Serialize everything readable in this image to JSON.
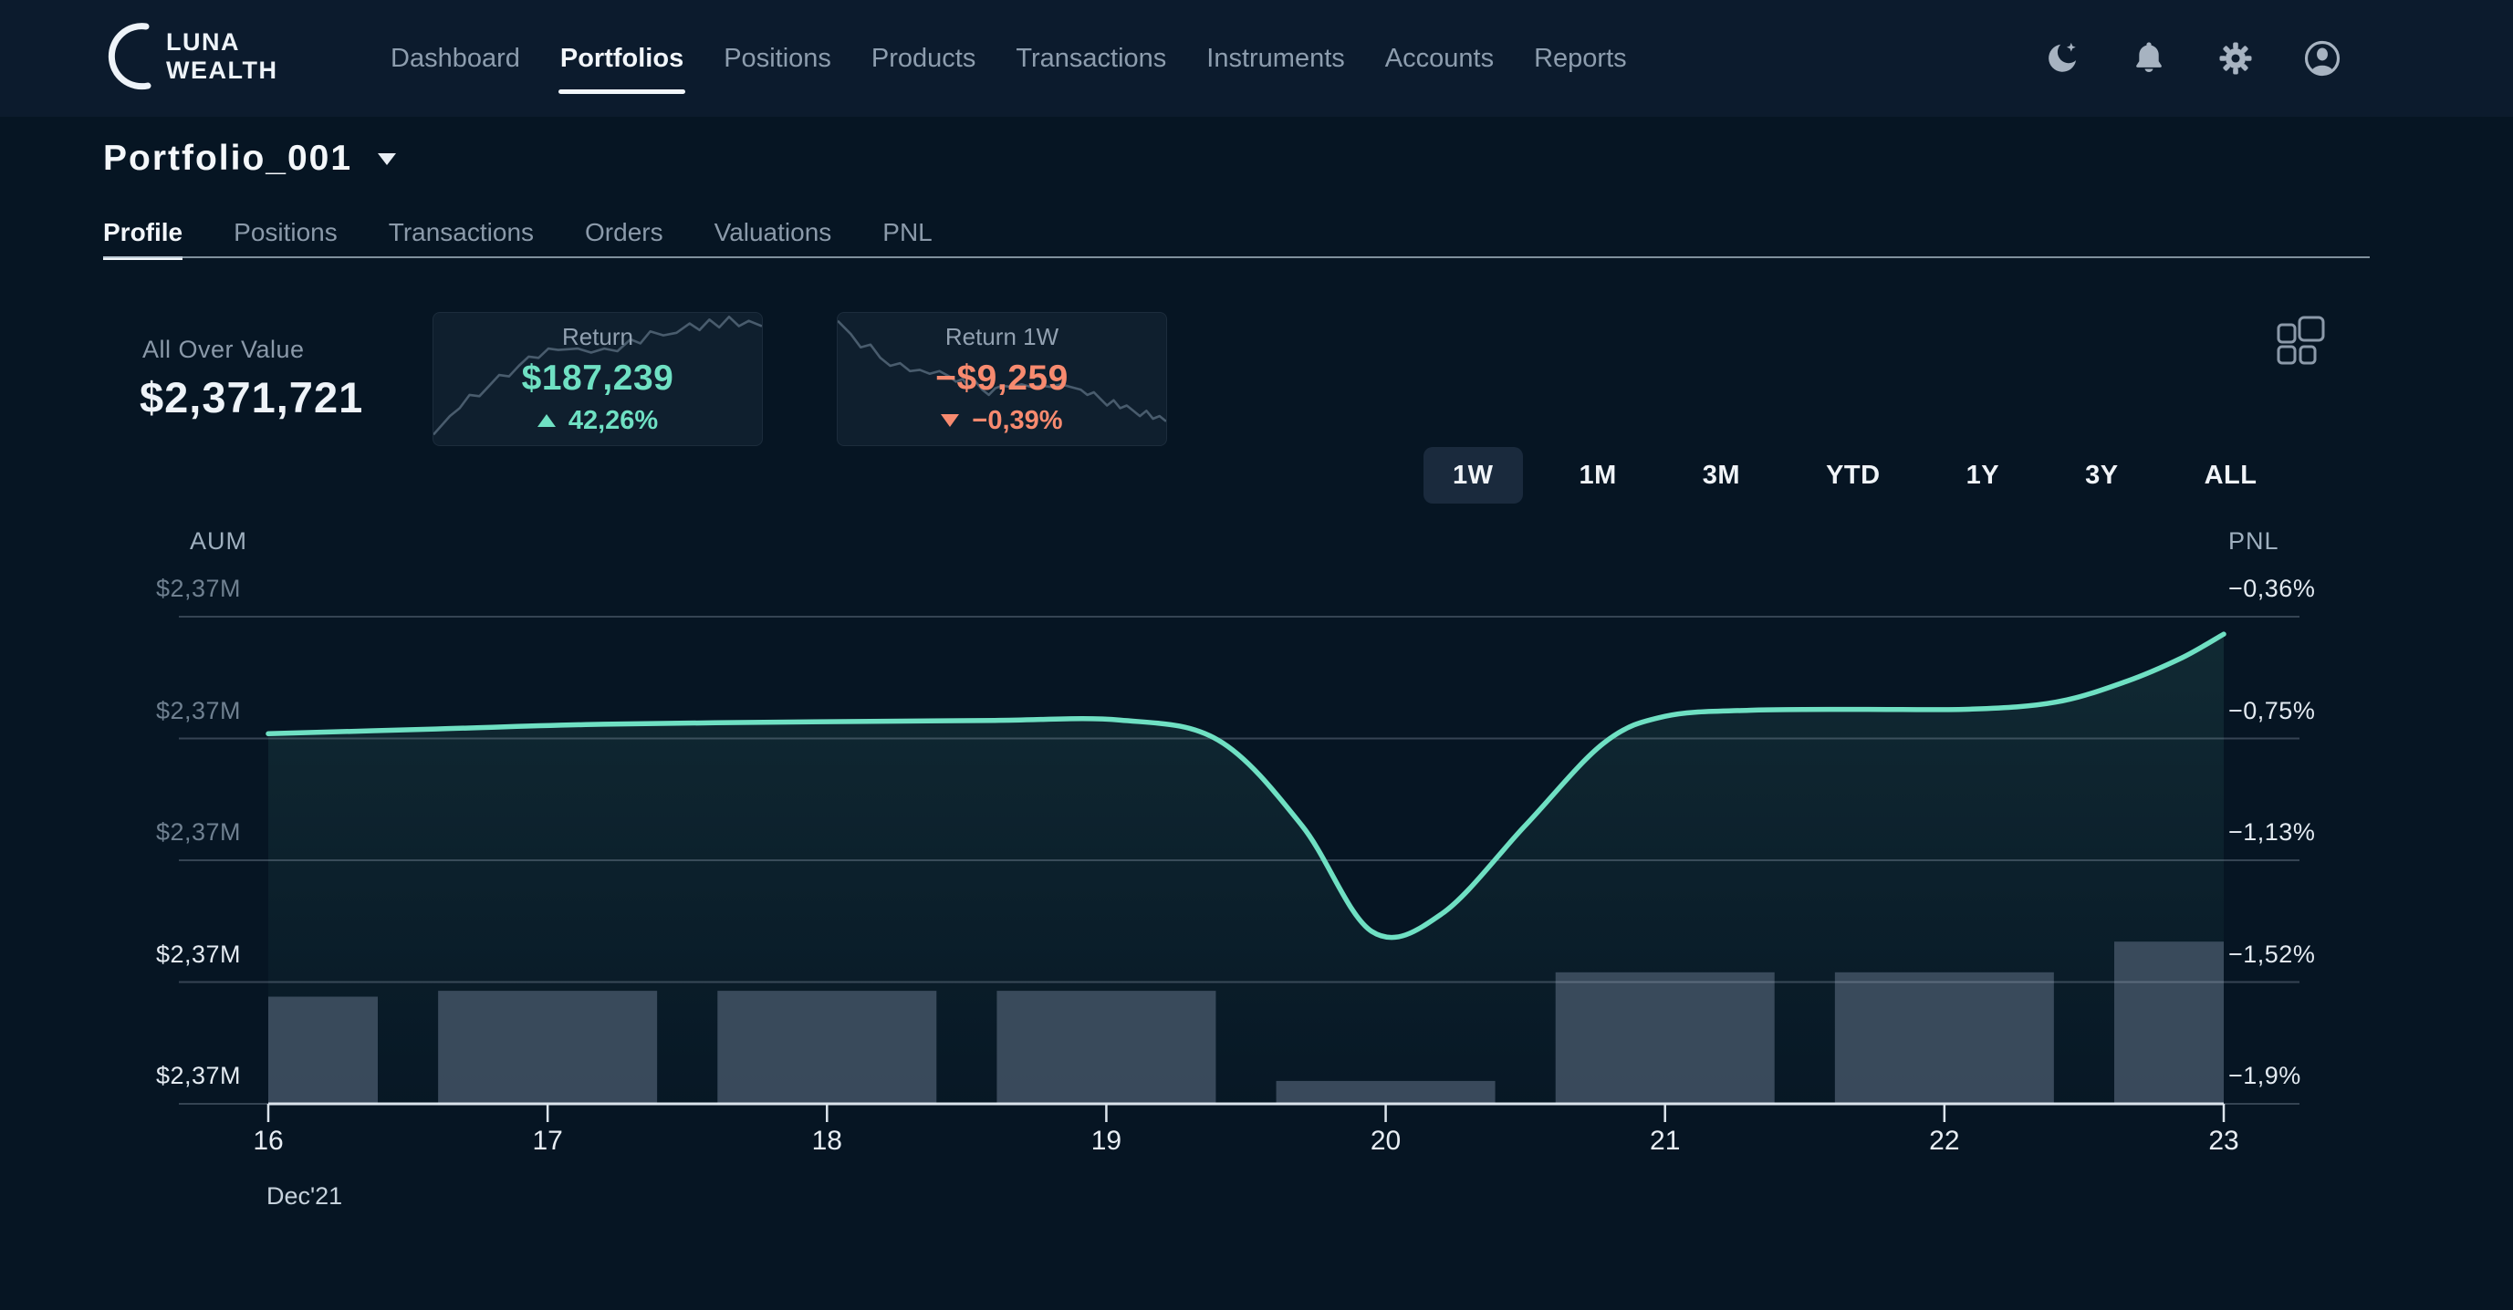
{
  "brand": {
    "line1": "LUNA",
    "line2": "WEALTH"
  },
  "nav": {
    "items": [
      {
        "label": "Dashboard",
        "active": false
      },
      {
        "label": "Portfolios",
        "active": true
      },
      {
        "label": "Positions",
        "active": false
      },
      {
        "label": "Products",
        "active": false
      },
      {
        "label": "Transactions",
        "active": false
      },
      {
        "label": "Instruments",
        "active": false
      },
      {
        "label": "Accounts",
        "active": false
      },
      {
        "label": "Reports",
        "active": false
      }
    ],
    "icons": [
      "moon-icon",
      "bell-icon",
      "gear-icon",
      "avatar-icon"
    ]
  },
  "portfolio": {
    "title": "Portfolio_001"
  },
  "tabs": [
    {
      "label": "Profile",
      "active": true
    },
    {
      "label": "Positions",
      "active": false
    },
    {
      "label": "Transactions",
      "active": false
    },
    {
      "label": "Orders",
      "active": false
    },
    {
      "label": "Valuations",
      "active": false
    },
    {
      "label": "PNL",
      "active": false
    }
  ],
  "stats": {
    "all_over_value": {
      "label": "All Over Value",
      "value": "$2,371,721"
    },
    "return": {
      "label": "Return",
      "value": "$187,239",
      "change": "42,26%",
      "direction": "up",
      "sparkline": [
        [
          0,
          92
        ],
        [
          5,
          78
        ],
        [
          8,
          72
        ],
        [
          11,
          62
        ],
        [
          14,
          63
        ],
        [
          17,
          55
        ],
        [
          20,
          47
        ],
        [
          23,
          48
        ],
        [
          26,
          40
        ],
        [
          29,
          33
        ],
        [
          32,
          34
        ],
        [
          35,
          27
        ],
        [
          38,
          28
        ],
        [
          44,
          27
        ],
        [
          48,
          30
        ],
        [
          52,
          27
        ],
        [
          56,
          29
        ],
        [
          60,
          20
        ],
        [
          63,
          23
        ],
        [
          66,
          14
        ],
        [
          70,
          17
        ],
        [
          74,
          15
        ],
        [
          78,
          8
        ],
        [
          81,
          13
        ],
        [
          84,
          5
        ],
        [
          87,
          11
        ],
        [
          90,
          3
        ],
        [
          93,
          10
        ],
        [
          96,
          6
        ],
        [
          100,
          10
        ]
      ]
    },
    "return_1w": {
      "label": "Return 1W",
      "value": "−$9,259",
      "change": "−0,39%",
      "direction": "down",
      "sparkline": [
        [
          0,
          6
        ],
        [
          4,
          16
        ],
        [
          7,
          26
        ],
        [
          10,
          24
        ],
        [
          13,
          34
        ],
        [
          16,
          40
        ],
        [
          19,
          38
        ],
        [
          22,
          44
        ],
        [
          25,
          43
        ],
        [
          28,
          46
        ],
        [
          31,
          44
        ],
        [
          34,
          48
        ],
        [
          36,
          52
        ],
        [
          38,
          50
        ],
        [
          40,
          56
        ],
        [
          42,
          52
        ],
        [
          44,
          58
        ],
        [
          46,
          62
        ],
        [
          48,
          57
        ],
        [
          50,
          55
        ],
        [
          53,
          56
        ],
        [
          56,
          54
        ],
        [
          59,
          56
        ],
        [
          62,
          55
        ],
        [
          65,
          56
        ],
        [
          68,
          54
        ],
        [
          71,
          56
        ],
        [
          74,
          58
        ],
        [
          76,
          62
        ],
        [
          78,
          60
        ],
        [
          80,
          65
        ],
        [
          82,
          70
        ],
        [
          84,
          66
        ],
        [
          86,
          72
        ],
        [
          88,
          70
        ],
        [
          90,
          74
        ],
        [
          92,
          78
        ],
        [
          94,
          74
        ],
        [
          96,
          80
        ],
        [
          98,
          78
        ],
        [
          100,
          82
        ]
      ]
    }
  },
  "ranges": [
    {
      "label": "1W",
      "active": true
    },
    {
      "label": "1M",
      "active": false
    },
    {
      "label": "3M",
      "active": false
    },
    {
      "label": "YTD",
      "active": false
    },
    {
      "label": "1Y",
      "active": false
    },
    {
      "label": "3Y",
      "active": false
    },
    {
      "label": "ALL",
      "active": false
    }
  ],
  "chart_data": {
    "type": "line+bar",
    "left_axis": {
      "label": "AUM",
      "ticks": [
        "$2,37M",
        "$2,37M",
        "$2,37M",
        "$2,37M",
        "$2,37M"
      ]
    },
    "right_axis": {
      "label": "PNL",
      "ticks": [
        "−0,36%",
        "−0,75%",
        "−1,13%",
        "−1,52%",
        "−1,9%"
      ],
      "range_pct": [
        -0.36,
        -1.9
      ]
    },
    "x_axis": {
      "ticks": [
        "16",
        "17",
        "18",
        "19",
        "20",
        "21",
        "22",
        "23"
      ],
      "period_label": "Dec'21"
    },
    "line_series": {
      "name": "PNL",
      "color": "#6fe0c3",
      "points_day_pnl_pct": [
        [
          16,
          -0.73
        ],
        [
          16.6,
          -0.715
        ],
        [
          17.2,
          -0.7
        ],
        [
          18,
          -0.692
        ],
        [
          18.6,
          -0.688
        ],
        [
          19.05,
          -0.687
        ],
        [
          19.4,
          -0.75
        ],
        [
          19.7,
          -1.02
        ],
        [
          19.95,
          -1.355
        ],
        [
          20.2,
          -1.3
        ],
        [
          20.5,
          -1.02
        ],
        [
          20.78,
          -0.76
        ],
        [
          21.0,
          -0.675
        ],
        [
          21.3,
          -0.656
        ],
        [
          21.7,
          -0.653
        ],
        [
          22.1,
          -0.652
        ],
        [
          22.4,
          -0.63
        ],
        [
          22.65,
          -0.565
        ],
        [
          22.85,
          -0.49
        ],
        [
          23,
          -0.415
        ]
      ]
    },
    "bar_series": {
      "name": "AUM",
      "color": "#3e4e5f",
      "days": [
        16,
        17,
        18,
        19,
        20,
        21,
        22,
        23
      ],
      "heights_pct_of_plot": [
        22.0,
        23.2,
        23.2,
        23.2,
        4.7,
        27.0,
        27.0,
        33.3
      ]
    },
    "grid": true,
    "legend": "none"
  }
}
